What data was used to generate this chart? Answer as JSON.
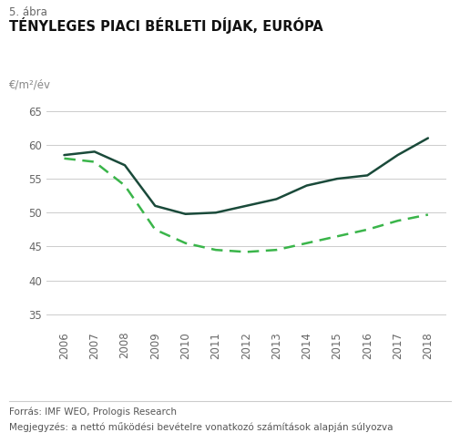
{
  "subtitle": "5. ábra",
  "title": "TÉNYLEGES PIACI BÉRLETI DÍJAK, EURÓPA",
  "ylabel": "€/m²/év",
  "years": [
    2006,
    2007,
    2008,
    2009,
    2010,
    2011,
    2012,
    2013,
    2014,
    2015,
    2016,
    2017,
    2018
  ],
  "nominal": [
    58.5,
    59.0,
    57.0,
    51.0,
    49.8,
    50.0,
    51.0,
    52.0,
    54.0,
    55.0,
    55.5,
    58.5,
    61.0
  ],
  "real": [
    58.0,
    57.5,
    54.0,
    47.5,
    45.5,
    44.5,
    44.2,
    44.5,
    45.5,
    46.5,
    47.5,
    48.8,
    49.7
  ],
  "nominal_color": "#1a4a3a",
  "real_color": "#3ab54a",
  "ylim_min": 33,
  "ylim_max": 67,
  "yticks": [
    35,
    40,
    45,
    50,
    55,
    60,
    65
  ],
  "grid_color": "#cccccc",
  "background_color": "#ffffff",
  "footnote1": "Forrás: IMF WEO, Prologis Research",
  "footnote2": "Megjegyzés: a nettó működési bevételre vonatkozó számítások alapján súlyozva",
  "subtitle_fontsize": 8.5,
  "title_fontsize": 10.5,
  "tick_fontsize": 8.5,
  "footnote_fontsize": 7.5,
  "ylabel_fontsize": 8.5
}
